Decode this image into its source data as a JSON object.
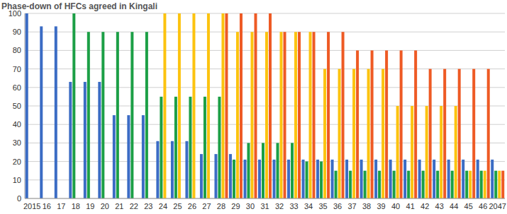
{
  "chart_data": {
    "type": "bar",
    "title": "Phase-down of HFCs agreed in Kingali",
    "categories": [
      "2015",
      "16",
      "17",
      "18",
      "19",
      "20",
      "21",
      "22",
      "23",
      "24",
      "25",
      "26",
      "27",
      "28",
      "29",
      "30",
      "31",
      "32",
      "33",
      "34",
      "35",
      "36",
      "37",
      "38",
      "39",
      "40",
      "41",
      "42",
      "43",
      "44",
      "45",
      "46",
      "2047"
    ],
    "series": [
      {
        "color": "#3b6cc4",
        "values": [
          100,
          93,
          93,
          63,
          63,
          63,
          45,
          45,
          45,
          31,
          31,
          31,
          24,
          24,
          24,
          21,
          21,
          21,
          21,
          21,
          21,
          21,
          21,
          21,
          21,
          21,
          21,
          21,
          21,
          21,
          21,
          21,
          21
        ]
      },
      {
        "color": "#1c9f46",
        "values": [
          null,
          null,
          null,
          100,
          90,
          90,
          90,
          90,
          90,
          55,
          55,
          55,
          55,
          55,
          21,
          30,
          30,
          30,
          30,
          20,
          20,
          15,
          15,
          15,
          15,
          15,
          15,
          15,
          15,
          15,
          15,
          15,
          15
        ]
      },
      {
        "color": "#fcc30f",
        "values": [
          null,
          null,
          null,
          null,
          null,
          null,
          null,
          null,
          null,
          100,
          100,
          100,
          100,
          100,
          90,
          90,
          90,
          90,
          90,
          90,
          70,
          70,
          70,
          70,
          70,
          50,
          50,
          50,
          50,
          50,
          15,
          15,
          15
        ]
      },
      {
        "color": "#ee5a24",
        "values": [
          null,
          null,
          null,
          null,
          null,
          null,
          null,
          null,
          null,
          null,
          null,
          null,
          null,
          100,
          100,
          100,
          100,
          90,
          90,
          90,
          90,
          90,
          80,
          80,
          80,
          80,
          80,
          70,
          70,
          70,
          70,
          70,
          15
        ]
      }
    ],
    "ylim": [
      0,
      100
    ],
    "yticks": [
      0,
      10,
      20,
      30,
      40,
      50,
      60,
      70,
      80,
      90,
      100
    ],
    "grid": true
  }
}
